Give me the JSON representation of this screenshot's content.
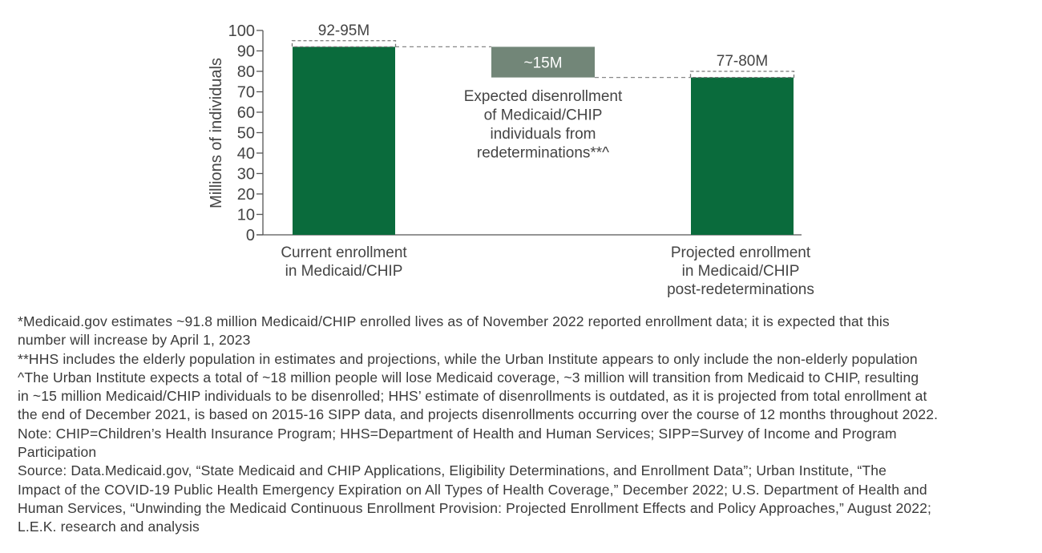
{
  "chart_data": {
    "type": "waterfall",
    "ylabel": "Millions of individuals",
    "ylim": [
      0,
      100
    ],
    "yticks": [
      "0",
      "10",
      "20",
      "30",
      "40",
      "50",
      "60",
      "70",
      "80",
      "90",
      "100"
    ],
    "grid": false,
    "colors": {
      "enrollment": "#0a6b3c",
      "disenrollment": "#728678",
      "range_box": "#777777"
    },
    "bars": [
      {
        "category_lines": [
          "Current enrollment",
          "in Medicaid/CHIP"
        ],
        "low": 0,
        "high": 92,
        "range_top": 95,
        "label": "92-95M",
        "kind": "enrollment"
      },
      {
        "category_lines": [],
        "low": 77,
        "high": 92,
        "label": "~15M",
        "kind": "disenrollment",
        "annotation_lines": [
          "Expected disenrollment",
          "of Medicaid/CHIP",
          "individuals from",
          "redeterminations**^"
        ]
      },
      {
        "category_lines": [
          "Projected enrollment",
          "in Medicaid/CHIP",
          "post-redeterminations"
        ],
        "low": 0,
        "high": 77,
        "range_top": 80,
        "label": "77-80M",
        "kind": "enrollment"
      }
    ]
  },
  "footnotes": [
    [
      "*Medicaid.gov estimates ~91.8 million Medicaid/CHIP enrolled lives as of November 2022 reported enrollment data; it is expected that this",
      "number will increase by April 1, 2023"
    ],
    [
      "**HHS includes the elderly population in estimates and projections, while the Urban Institute appears to only include the non-elderly population"
    ],
    [
      "^The Urban Institute expects a total of ~18 million people will lose Medicaid coverage, ~3 million will transition from Medicaid to CHIP, resulting",
      "in ~15 million Medicaid/CHIP individuals to be disenrolled; HHS’ estimate of disenrollments is outdated, as it is projected from total enrollment at",
      "the end of December 2021, is based on 2015-16 SIPP data, and projects disenrollments occurring over the course of 12 months throughout 2022."
    ],
    [
      "Note: CHIP=Children’s Health Insurance Program; HHS=Department of Health and Human Services; SIPP=Survey of Income and Program",
      "Participation"
    ],
    [
      "Source: Data.Medicaid.gov, “State Medicaid and CHIP Applications, Eligibility Determinations, and Enrollment Data”; Urban Institute, “The",
      "Impact of the COVID-19 Public Health Emergency Expiration on All Types of Health Coverage,” December 2022; U.S. Department of Health and",
      "Human Services, “Unwinding the Medicaid Continuous Enrollment Provision: Projected Enrollment Effects and Policy Approaches,” August 2022;",
      "L.E.K. research and analysis"
    ]
  ]
}
